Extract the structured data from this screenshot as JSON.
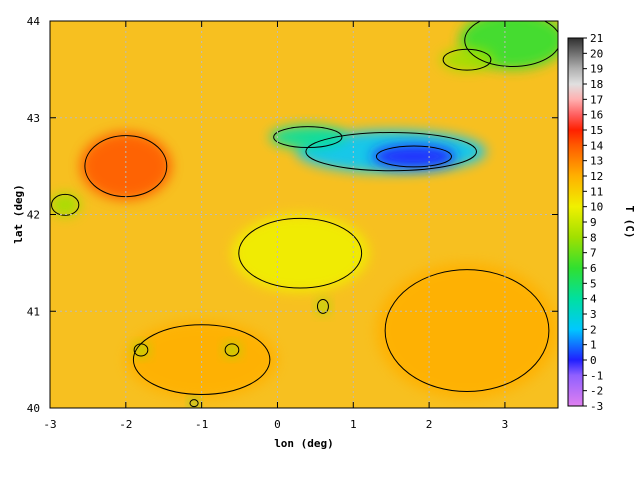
{
  "chart_data": {
    "type": "heatmap",
    "title": "",
    "xlabel": "lon (deg)",
    "ylabel": "lat (deg)",
    "colorbar_label": "T (C)",
    "xlim": [
      -3,
      3.7
    ],
    "ylim": [
      40,
      44
    ],
    "x_ticks": [
      -3,
      -2,
      -1,
      0,
      1,
      2,
      3
    ],
    "y_ticks": [
      40,
      41,
      42,
      43,
      44
    ],
    "colorbar_range": [
      -3,
      21
    ],
    "colorbar_ticks": [
      -3,
      -2,
      -1,
      0,
      1,
      2,
      3,
      4,
      5,
      6,
      7,
      8,
      9,
      10,
      11,
      12,
      13,
      14,
      15,
      16,
      17,
      18,
      19,
      20,
      21
    ],
    "grid": true,
    "colorscale": [
      {
        "value": -3,
        "color": "#e080f0"
      },
      {
        "value": -1,
        "color": "#9060ff"
      },
      {
        "value": 0,
        "color": "#2020ff"
      },
      {
        "value": 2,
        "color": "#00c8ff"
      },
      {
        "value": 4,
        "color": "#00e0a0"
      },
      {
        "value": 6,
        "color": "#30e030"
      },
      {
        "value": 8,
        "color": "#a0e000"
      },
      {
        "value": 10,
        "color": "#f0f000"
      },
      {
        "value": 12,
        "color": "#ffb000"
      },
      {
        "value": 14,
        "color": "#ff5a00"
      },
      {
        "value": 15,
        "color": "#ff2000"
      },
      {
        "value": 16,
        "color": "#ff6060"
      },
      {
        "value": 17,
        "color": "#ffb0b0"
      },
      {
        "value": 18,
        "color": "#e0e0e0"
      },
      {
        "value": 19,
        "color": "#b0b0b0"
      },
      {
        "value": 21,
        "color": "#303030"
      }
    ],
    "features": [
      {
        "name": "pyrenees-cold",
        "lon": 1.5,
        "lat": 42.65,
        "value": 2,
        "rx": 1.25,
        "ry": 0.22
      },
      {
        "name": "pyrenees-core",
        "lon": 1.8,
        "lat": 42.6,
        "value": 0.5,
        "rx": 0.55,
        "ry": 0.12
      },
      {
        "name": "pyrenees-west",
        "lon": 0.4,
        "lat": 42.8,
        "value": 4,
        "rx": 0.5,
        "ry": 0.12
      },
      {
        "name": "northeast-green",
        "lon": 3.1,
        "lat": 43.8,
        "value": 6,
        "rx": 0.7,
        "ry": 0.3
      },
      {
        "name": "northeast-green-2",
        "lon": 2.5,
        "lat": 43.6,
        "value": 8,
        "rx": 0.35,
        "ry": 0.12
      },
      {
        "name": "west-coast-green",
        "lon": -2.8,
        "lat": 42.1,
        "value": 8,
        "rx": 0.2,
        "ry": 0.12
      },
      {
        "name": "iberian-range-warm",
        "lon": -2.0,
        "lat": 42.5,
        "value": 14,
        "rx": 0.6,
        "ry": 0.35
      },
      {
        "name": "ebro-valley",
        "lon": 0.3,
        "lat": 41.6,
        "value": 11,
        "rx": 0.9,
        "ry": 0.4
      },
      {
        "name": "southwest-warm",
        "lon": -1.0,
        "lat": 40.5,
        "value": 13,
        "rx": 1.0,
        "ry": 0.4
      },
      {
        "name": "coastal-sea",
        "lon": 2.5,
        "lat": 40.8,
        "value": 13,
        "rx": 1.2,
        "ry": 0.7
      },
      {
        "name": "south-green-1",
        "lon": -0.6,
        "lat": 40.6,
        "value": 8,
        "rx": 0.1,
        "ry": 0.07
      },
      {
        "name": "south-green-2",
        "lon": -1.8,
        "lat": 40.6,
        "value": 8,
        "rx": 0.1,
        "ry": 0.07
      },
      {
        "name": "south-green-3",
        "lon": -1.1,
        "lat": 40.05,
        "value": 7,
        "rx": 0.06,
        "ry": 0.04
      },
      {
        "name": "delta-green",
        "lon": 0.6,
        "lat": 41.05,
        "value": 8,
        "rx": 0.08,
        "ry": 0.08
      }
    ]
  }
}
